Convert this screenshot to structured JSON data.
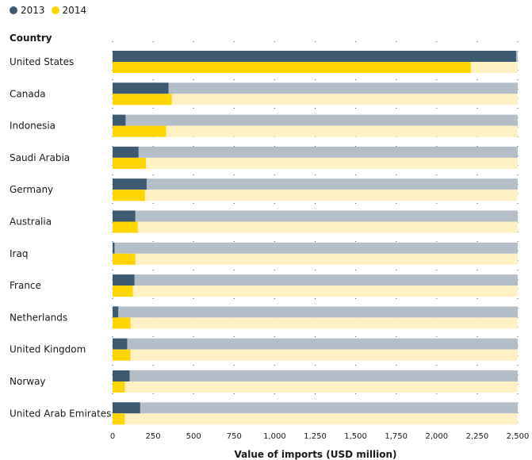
{
  "chart_data": {
    "type": "bar",
    "orientation": "horizontal",
    "category_header": "Country",
    "xlabel": "Value of imports (USD million)",
    "xlim": [
      0,
      2500
    ],
    "x_ticks": [
      0,
      250,
      500,
      750,
      1000,
      1250,
      1500,
      1750,
      2000,
      2250,
      2500
    ],
    "x_tick_labels": [
      "0",
      "250",
      "500",
      "750",
      "1,000",
      "1,250",
      "1,500",
      "1,750",
      "2,000",
      "2,250",
      "2,500"
    ],
    "categories": [
      "United States",
      "Canada",
      "Indonesia",
      "Saudi Arabia",
      "Germany",
      "Australia",
      "Iraq",
      "France",
      "Netherlands",
      "United Kingdom",
      "Norway",
      "United Arab Emirates"
    ],
    "series": [
      {
        "name": "2013",
        "color": "#3d5a73",
        "track_color": "#b4bec8",
        "values": [
          2490,
          345,
          80,
          160,
          210,
          140,
          12,
          135,
          35,
          90,
          105,
          170
        ]
      },
      {
        "name": "2014",
        "color": "#ffd500",
        "track_color": "#fff1c2",
        "values": [
          2210,
          365,
          330,
          205,
          200,
          155,
          140,
          125,
          110,
          110,
          75,
          75
        ]
      }
    ],
    "legend_position": "top-left",
    "grid": false
  }
}
